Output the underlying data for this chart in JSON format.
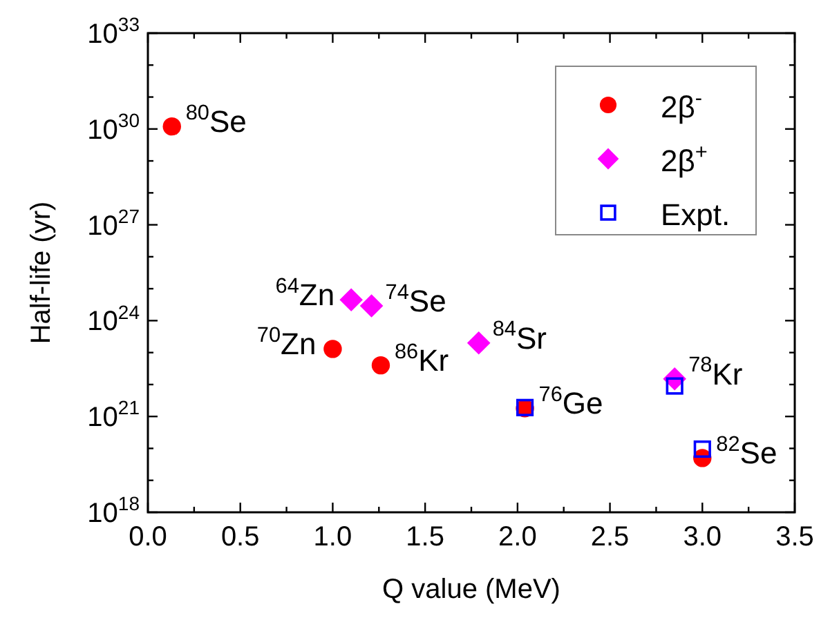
{
  "chart_data": {
    "type": "scatter",
    "xlabel": "Q value (MeV)",
    "ylabel": "Half-life (yr)",
    "log": "y",
    "legend": "top right",
    "grid": false,
    "xlim": [
      0,
      3.5
    ],
    "ylim": [
      1e+18,
      1e+33
    ],
    "xticks": [
      {
        "value": 0,
        "label": "0.0"
      },
      {
        "value": 0.25,
        "label": null
      },
      {
        "value": 0.5,
        "label": "0.5"
      },
      {
        "value": 0.75,
        "label": null
      },
      {
        "value": 1,
        "label": "1.0"
      },
      {
        "value": 1.25,
        "label": null
      },
      {
        "value": 1.5,
        "label": "1.5"
      },
      {
        "value": 1.75,
        "label": null
      },
      {
        "value": 2,
        "label": "2.0"
      },
      {
        "value": 2.25,
        "label": null
      },
      {
        "value": 2.5,
        "label": "2.5"
      },
      {
        "value": 2.75,
        "label": null
      },
      {
        "value": 3,
        "label": "3.0"
      },
      {
        "value": 3.25,
        "label": null
      },
      {
        "value": 3.5,
        "label": "3.5"
      }
    ],
    "yticks": [
      {
        "value": 1e+18,
        "label": "10$^{18}$"
      },
      {
        "value": 1e+19,
        "label": null
      },
      {
        "value": 1e+20,
        "label": null
      },
      {
        "value": 1e+21,
        "label": "10$^{21}$"
      },
      {
        "value": 1e+22,
        "label": null
      },
      {
        "value": 1e+23,
        "label": null
      },
      {
        "value": 1e+24,
        "label": "10$^{24}$"
      },
      {
        "value": 1e+25,
        "label": null
      },
      {
        "value": 1e+26,
        "label": null
      },
      {
        "value": 1e+27,
        "label": "10$^{27}$"
      },
      {
        "value": 1e+28,
        "label": null
      },
      {
        "value": 1e+29,
        "label": null
      },
      {
        "value": 1e+30,
        "label": "10$^{30}$"
      },
      {
        "value": 1e+31,
        "label": null
      },
      {
        "value": 1e+32,
        "label": null
      },
      {
        "value": 1e+33,
        "label": "10$^{33}$"
      }
    ],
    "series": [
      {
        "name": "2β$^{-}$",
        "color": "#ff0000",
        "marker": "circle",
        "x": [
          0.13,
          1.0,
          1.26,
          2.04,
          3.0
        ],
        "values": [
          1.2e+30,
          1.3e+23,
          4e+22,
          1.8e+21,
          5e+19
        ]
      },
      {
        "name": "2β$^{+}$",
        "color": "#ff00ff",
        "marker": "diamond",
        "x": [
          1.1,
          1.21,
          1.79,
          2.85
        ],
        "values": [
          4.5e+24,
          2.9e+24,
          2e+23,
          1.5e+22
        ]
      },
      {
        "name": "Expt.",
        "color": "#0000ff",
        "marker": "square",
        "x": [
          2.04,
          2.85,
          3.0
        ],
        "values": [
          1.9e+21,
          9e+21,
          9.5e+19
        ]
      }
    ],
    "annotations": [
      {
        "text": "$^{80}$Se",
        "x": 0.13,
        "y": 1.2e+30
      },
      {
        "text": "$^{64}$Zn",
        "x": 1.1,
        "y": 4.5e+24
      },
      {
        "text": "$^{74}$Se",
        "x": 1.21,
        "y": 2.9e+24
      },
      {
        "text": "$^{70}$Zn",
        "x": 1.0,
        "y": 1.3e+23
      },
      {
        "text": "$^{86}$Kr",
        "x": 1.26,
        "y": 4e+22
      },
      {
        "text": "$^{84}$Sr",
        "x": 1.79,
        "y": 2e+23
      },
      {
        "text": "$^{76}$Ge",
        "x": 2.04,
        "y": 1.8e+21
      },
      {
        "text": "$^{78}$Kr",
        "x": 2.85,
        "y": 1.5e+22
      },
      {
        "text": "$^{82}$Se",
        "x": 3.0,
        "y": 5e+19
      }
    ]
  }
}
